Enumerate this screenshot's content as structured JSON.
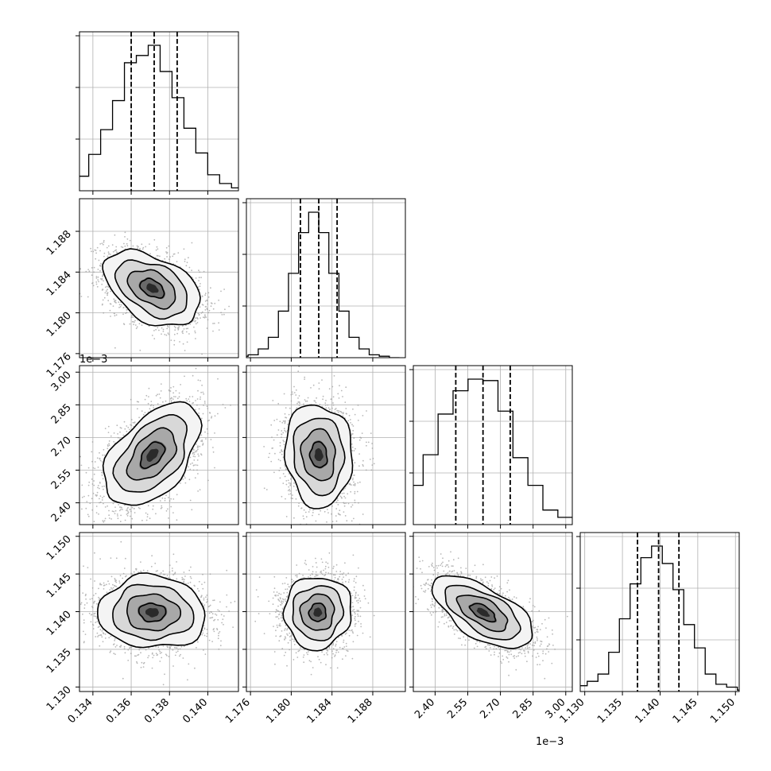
{
  "chart_data": {
    "type": "corner",
    "title": "",
    "grid": true,
    "parameters": [
      {
        "index": 0,
        "range": [
          0.1333,
          0.1416
        ],
        "ticks": [
          0.134,
          0.136,
          0.138,
          0.14
        ],
        "tick_labels": [
          "0.134",
          "0.136",
          "0.138",
          "0.140"
        ],
        "offset_text": "",
        "median": 0.1372,
        "quantiles": [
          0.136,
          0.1384
        ],
        "histogram": [
          0.0,
          0.04,
          0.1,
          0.25,
          0.42,
          0.62,
          0.88,
          0.93,
          1.0,
          0.82,
          0.64,
          0.43,
          0.26,
          0.11,
          0.05,
          0.02,
          0.01
        ]
      },
      {
        "index": 1,
        "range": [
          1.1756,
          1.1912
        ],
        "ticks": [
          1.176,
          1.18,
          1.184,
          1.188
        ],
        "tick_labels": [
          "1.176",
          "1.180",
          "1.184",
          "1.188"
        ],
        "offset_text": "",
        "median": 1.1827,
        "quantiles": [
          1.1809,
          1.1845
        ],
        "histogram": [
          0.01,
          0.02,
          0.06,
          0.14,
          0.32,
          0.58,
          0.86,
          1.0,
          0.86,
          0.58,
          0.32,
          0.14,
          0.06,
          0.02,
          0.01,
          0.0
        ]
      },
      {
        "index": 2,
        "range": [
          2.3,
          3.03
        ],
        "ticks": [
          2.4,
          2.55,
          2.7,
          2.85,
          3.0
        ],
        "tick_labels": [
          "2.40",
          "2.55",
          "2.70",
          "2.85",
          "3.00"
        ],
        "offset_text": "1e−3",
        "median": 2.62,
        "quantiles": [
          2.495,
          2.745
        ],
        "histogram": [
          0.01,
          0.04,
          0.1,
          0.27,
          0.48,
          0.76,
          0.92,
          1.0,
          0.99,
          0.78,
          0.46,
          0.27,
          0.1,
          0.05,
          0.03,
          0.01
        ]
      },
      {
        "index": 3,
        "range": [
          1.1294,
          1.1505
        ],
        "ticks": [
          1.13,
          1.135,
          1.14,
          1.145,
          1.15
        ],
        "tick_labels": [
          "1.130",
          "1.135",
          "1.140",
          "1.145",
          "1.150"
        ],
        "offset_text": "",
        "median": 1.1398,
        "quantiles": [
          1.137,
          1.1425
        ],
        "histogram": [
          0.0,
          0.04,
          0.07,
          0.12,
          0.27,
          0.5,
          0.74,
          0.92,
          1.0,
          0.88,
          0.7,
          0.46,
          0.3,
          0.12,
          0.05,
          0.03,
          0.01
        ]
      }
    ],
    "pairs": [
      {
        "x": 0,
        "y": 1,
        "mean": [
          0.1371,
          1.1824
        ],
        "sd": [
          0.00125,
          0.00185
        ],
        "rho": -0.42
      },
      {
        "x": 0,
        "y": 2,
        "mean": [
          0.1371,
          2.62
        ],
        "sd": [
          0.00125,
          0.118
        ],
        "rho": 0.5
      },
      {
        "x": 1,
        "y": 2,
        "mean": [
          1.1827,
          2.62
        ],
        "sd": [
          0.00165,
          0.118
        ],
        "rho": -0.08
      },
      {
        "x": 0,
        "y": 3,
        "mean": [
          0.1371,
          1.1399
        ],
        "sd": [
          0.0014,
          0.0024
        ],
        "rho": -0.05
      },
      {
        "x": 1,
        "y": 3,
        "mean": [
          1.1826,
          1.1399
        ],
        "sd": [
          0.00165,
          0.0024
        ],
        "rho": 0.04
      },
      {
        "x": 2,
        "y": 3,
        "mean": [
          2.62,
          1.1399
        ],
        "sd": [
          0.115,
          0.0024
        ],
        "rho": -0.62
      }
    ],
    "contour_levels_sigma": [
      0.5,
      1.0,
      1.5,
      2.0
    ],
    "colors": {
      "line": "#000000",
      "grid": "#b0b0b0",
      "points": "#9a9a9a",
      "frame": "#000000"
    }
  }
}
